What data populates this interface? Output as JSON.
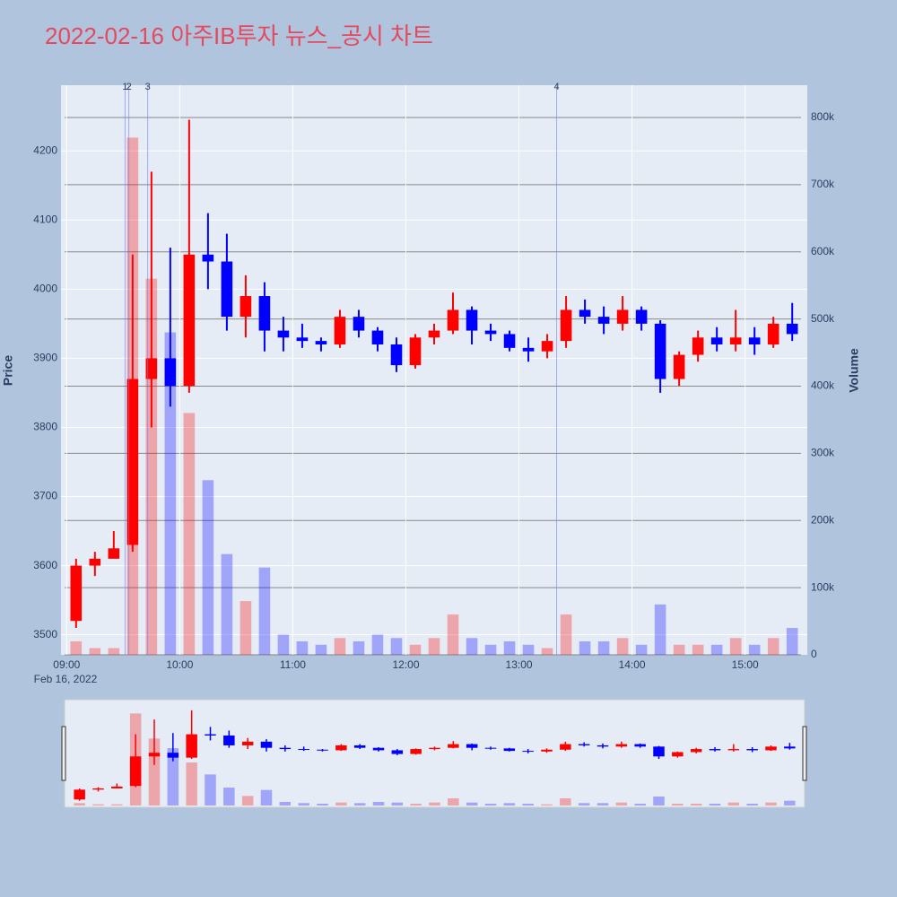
{
  "chart_data": {
    "type": "candlestick",
    "title": "2022-02-16 아주IB투자 뉴스_공시 차트",
    "ylabel": "Price",
    "y2label": "Volume",
    "increasing_color": "red",
    "decreasing_color": "blue",
    "x": [
      "2022-02-16 09:00",
      "2022-02-16 09:10",
      "2022-02-16 09:20",
      "2022-02-16 09:30",
      "2022-02-16 09:40",
      "2022-02-16 09:50",
      "2022-02-16 10:00",
      "2022-02-16 10:10",
      "2022-02-16 10:20",
      "2022-02-16 10:30",
      "2022-02-16 10:40",
      "2022-02-16 10:50",
      "2022-02-16 11:00",
      "2022-02-16 11:10",
      "2022-02-16 11:20",
      "2022-02-16 11:30",
      "2022-02-16 11:40",
      "2022-02-16 11:50",
      "2022-02-16 12:00",
      "2022-02-16 12:10",
      "2022-02-16 12:20",
      "2022-02-16 12:30",
      "2022-02-16 12:40",
      "2022-02-16 12:50",
      "2022-02-16 13:00",
      "2022-02-16 13:10",
      "2022-02-16 13:20",
      "2022-02-16 13:30",
      "2022-02-16 13:40",
      "2022-02-16 13:50",
      "2022-02-16 14:00",
      "2022-02-16 14:10",
      "2022-02-16 14:20",
      "2022-02-16 14:30",
      "2022-02-16 14:40",
      "2022-02-16 14:50",
      "2022-02-16 15:00",
      "2022-02-16 15:10",
      "2022-02-16 15:20"
    ],
    "open": [
      3520,
      3600,
      3610,
      3630,
      3870,
      3900,
      3860,
      4050,
      4040,
      3960,
      3990,
      3940,
      3930,
      3925,
      3920,
      3960,
      3940,
      3920,
      3890,
      3930,
      3940,
      3970,
      3940,
      3935,
      3915,
      3910,
      3925,
      3970,
      3960,
      3950,
      3970,
      3950,
      3870,
      3905,
      3930,
      3920,
      3930,
      3920,
      3950
    ],
    "high": [
      3610,
      3620,
      3650,
      4050,
      4170,
      4060,
      4245,
      4110,
      4080,
      4020,
      4010,
      3960,
      3950,
      3930,
      3970,
      3970,
      3945,
      3930,
      3935,
      3950,
      3995,
      3975,
      3950,
      3940,
      3930,
      3935,
      3990,
      3985,
      3975,
      3990,
      3975,
      3955,
      3910,
      3940,
      3945,
      3970,
      3945,
      3960,
      3980
    ],
    "low": [
      3510,
      3585,
      3615,
      3620,
      3800,
      3830,
      3850,
      4000,
      3940,
      3930,
      3910,
      3910,
      3915,
      3910,
      3915,
      3930,
      3910,
      3880,
      3885,
      3920,
      3935,
      3920,
      3925,
      3910,
      3895,
      3900,
      3915,
      3950,
      3935,
      3940,
      3940,
      3850,
      3860,
      3895,
      3910,
      3910,
      3905,
      3915,
      3925
    ],
    "close": [
      3600,
      3610,
      3625,
      3870,
      3900,
      3860,
      4050,
      4040,
      3960,
      3990,
      3940,
      3930,
      3925,
      3920,
      3960,
      3940,
      3920,
      3890,
      3930,
      3940,
      3970,
      3940,
      3935,
      3915,
      3910,
      3925,
      3970,
      3960,
      3950,
      3970,
      3950,
      3870,
      3905,
      3930,
      3920,
      3930,
      3920,
      3950,
      3935
    ],
    "volume": [
      20000,
      10000,
      10000,
      770000,
      560000,
      480000,
      360000,
      260000,
      150000,
      80000,
      130000,
      30000,
      20000,
      15000,
      25000,
      20000,
      30000,
      25000,
      15000,
      25000,
      60000,
      25000,
      15000,
      20000,
      15000,
      10000,
      60000,
      20000,
      20000,
      25000,
      15000,
      75000,
      15000,
      15000,
      15000,
      25000,
      15000,
      25000,
      40000
    ],
    "xlim": [
      "2022-02-16 08:57",
      "2022-02-16 15:33"
    ],
    "xticks": [
      {
        "value": "2022-02-16 09:00",
        "label": "09:00"
      },
      {
        "value": "2022-02-16 10:00",
        "label": "10:00"
      },
      {
        "value": "2022-02-16 11:00",
        "label": "11:00"
      },
      {
        "value": "2022-02-16 12:00",
        "label": "12:00"
      },
      {
        "value": "2022-02-16 13:00",
        "label": "13:00"
      },
      {
        "value": "2022-02-16 14:00",
        "label": "14:00"
      },
      {
        "value": "2022-02-16 15:00",
        "label": "15:00"
      }
    ],
    "x_date_label": "Feb 16, 2022",
    "ylim": [
      3471,
      4295
    ],
    "yticks": [
      3500,
      3600,
      3700,
      3800,
      3900,
      4000,
      4100,
      4200
    ],
    "y2lim": [
      0,
      848000
    ],
    "y2ticks": [
      0,
      {
        "value": 100000,
        "label": "100k"
      },
      {
        "value": 200000,
        "label": "200k"
      },
      {
        "value": 300000,
        "label": "300k"
      },
      {
        "value": 400000,
        "label": "400k"
      },
      {
        "value": 500000,
        "label": "500k"
      },
      {
        "value": 600000,
        "label": "600k"
      },
      {
        "value": 700000,
        "label": "700k"
      },
      {
        "value": 800000,
        "label": "800k"
      }
    ],
    "annotations": [
      {
        "x": "2022-02-16 09:31",
        "text": "1"
      },
      {
        "x": "2022-02-16 09:33",
        "text": "2"
      },
      {
        "x": "2022-02-16 09:43",
        "text": "3"
      },
      {
        "x": "2022-02-16 13:20",
        "text": "4"
      }
    ],
    "rangeslider": true
  }
}
